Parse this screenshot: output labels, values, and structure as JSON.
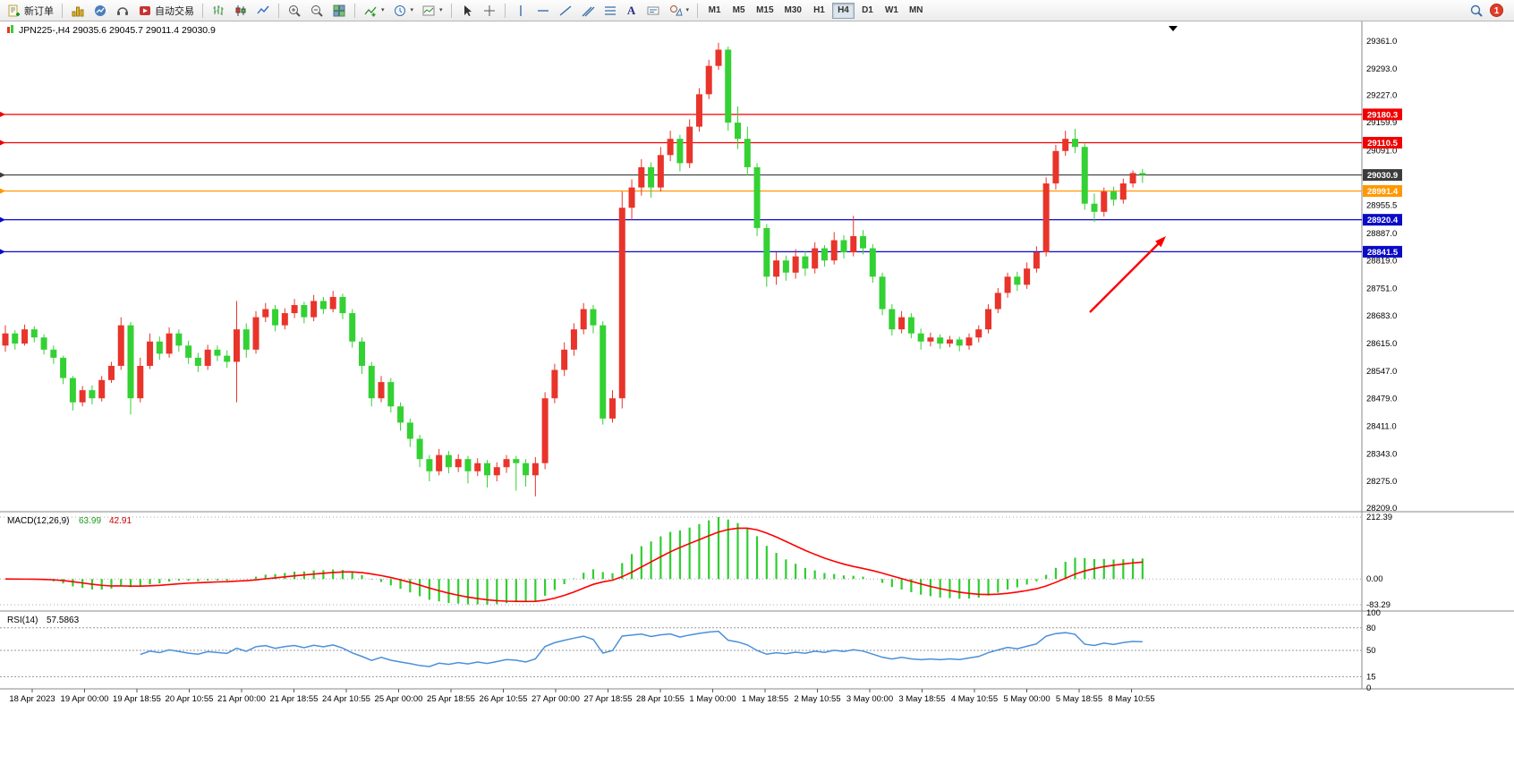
{
  "toolbar": {
    "new_order": "新订单",
    "autotrading": "自动交易",
    "timeframes": [
      "M1",
      "M5",
      "M15",
      "M30",
      "H1",
      "H4",
      "D1",
      "W1",
      "MN"
    ],
    "active_timeframe": "H4",
    "badge_count": "1"
  },
  "chart": {
    "title": "JPN225-,H4 29035.6 29045.7 29011.4 29030.9",
    "symbol": "JPN225-",
    "period": "H4",
    "open": "29035.6",
    "high": "29045.7",
    "low": "29011.4",
    "close": "29030.9"
  },
  "chart_data": {
    "type": "candlestick",
    "title": "JPN225-,H4",
    "y_range": [
      28209.0,
      29361.0
    ],
    "price_axis_labels": [
      "29361.0",
      "29293.0",
      "29227.0",
      "29159.9",
      "29091.0",
      "28955.5",
      "28887.0",
      "28819.0",
      "28751.0",
      "28683.0",
      "28615.0",
      "28547.0",
      "28479.0",
      "28411.0",
      "28343.0",
      "28275.0",
      "28209.0"
    ],
    "time_labels": [
      "18 Apr 2023",
      "19 Apr 00:00",
      "19 Apr 18:55",
      "20 Apr 10:55",
      "21 Apr 00:00",
      "21 Apr 18:55",
      "24 Apr 10:55",
      "25 Apr 00:00",
      "25 Apr 18:55",
      "26 Apr 10:55",
      "27 Apr 00:00",
      "27 Apr 18:55",
      "28 Apr 10:55",
      "1 May 00:00",
      "1 May 18:55",
      "2 May 10:55",
      "3 May 00:00",
      "3 May 18:55",
      "4 May 10:55",
      "5 May 00:00",
      "5 May 18:55",
      "8 May 10:55"
    ],
    "candles_ohlc": [
      [
        28610,
        28660,
        28595,
        28640
      ],
      [
        28640,
        28648,
        28600,
        28615
      ],
      [
        28615,
        28662,
        28610,
        28650
      ],
      [
        28650,
        28658,
        28618,
        28630
      ],
      [
        28630,
        28638,
        28588,
        28600
      ],
      [
        28600,
        28610,
        28565,
        28580
      ],
      [
        28580,
        28585,
        28515,
        28530
      ],
      [
        28530,
        28535,
        28450,
        28470
      ],
      [
        28470,
        28510,
        28460,
        28500
      ],
      [
        28500,
        28512,
        28465,
        28480
      ],
      [
        28480,
        28535,
        28472,
        28525
      ],
      [
        28525,
        28570,
        28518,
        28560
      ],
      [
        28560,
        28680,
        28550,
        28660
      ],
      [
        28660,
        28668,
        28440,
        28480
      ],
      [
        28480,
        28580,
        28470,
        28560
      ],
      [
        28560,
        28640,
        28552,
        28620
      ],
      [
        28620,
        28632,
        28575,
        28590
      ],
      [
        28590,
        28655,
        28580,
        28640
      ],
      [
        28640,
        28650,
        28595,
        28610
      ],
      [
        28610,
        28622,
        28565,
        28580
      ],
      [
        28580,
        28592,
        28545,
        28560
      ],
      [
        28560,
        28612,
        28550,
        28600
      ],
      [
        28600,
        28610,
        28572,
        28585
      ],
      [
        28585,
        28598,
        28555,
        28570
      ],
      [
        28570,
        28720,
        28470,
        28650
      ],
      [
        28650,
        28665,
        28580,
        28600
      ],
      [
        28600,
        28695,
        28590,
        28680
      ],
      [
        28680,
        28715,
        28668,
        28700
      ],
      [
        28700,
        28710,
        28645,
        28660
      ],
      [
        28660,
        28702,
        28650,
        28690
      ],
      [
        28690,
        28725,
        28678,
        28710
      ],
      [
        28710,
        28718,
        28665,
        28680
      ],
      [
        28680,
        28735,
        28670,
        28720
      ],
      [
        28720,
        28730,
        28688,
        28700
      ],
      [
        28700,
        28745,
        28692,
        28730
      ],
      [
        28730,
        28738,
        28675,
        28690
      ],
      [
        28690,
        28700,
        28605,
        28620
      ],
      [
        28620,
        28630,
        28540,
        28560
      ],
      [
        28560,
        28570,
        28460,
        28480
      ],
      [
        28480,
        28535,
        28470,
        28520
      ],
      [
        28520,
        28530,
        28445,
        28460
      ],
      [
        28460,
        28470,
        28400,
        28420
      ],
      [
        28420,
        28430,
        28360,
        28380
      ],
      [
        28380,
        28390,
        28310,
        28330
      ],
      [
        28330,
        28340,
        28275,
        28300
      ],
      [
        28300,
        28355,
        28290,
        28340
      ],
      [
        28340,
        28350,
        28295,
        28310
      ],
      [
        28310,
        28342,
        28298,
        28330
      ],
      [
        28330,
        28338,
        28270,
        28300
      ],
      [
        28300,
        28332,
        28288,
        28320
      ],
      [
        28320,
        28328,
        28260,
        28290
      ],
      [
        28290,
        28322,
        28275,
        28310
      ],
      [
        28310,
        28340,
        28296,
        28330
      ],
      [
        28330,
        28338,
        28252,
        28320
      ],
      [
        28320,
        28330,
        28262,
        28290
      ],
      [
        28290,
        28335,
        28238,
        28320
      ],
      [
        28320,
        28495,
        28305,
        28480
      ],
      [
        28480,
        28565,
        28468,
        28550
      ],
      [
        28550,
        28618,
        28535,
        28600
      ],
      [
        28600,
        28665,
        28585,
        28650
      ],
      [
        28650,
        28715,
        28638,
        28700
      ],
      [
        28700,
        28710,
        28640,
        28660
      ],
      [
        28660,
        28670,
        28415,
        28430
      ],
      [
        28430,
        28500,
        28420,
        28480
      ],
      [
        28480,
        28990,
        28455,
        28950
      ],
      [
        28950,
        29020,
        28920,
        29000
      ],
      [
        29000,
        29070,
        28980,
        29050
      ],
      [
        29050,
        29062,
        28975,
        29000
      ],
      [
        29000,
        29100,
        28990,
        29080
      ],
      [
        29080,
        29140,
        29065,
        29120
      ],
      [
        29120,
        29130,
        29040,
        29060
      ],
      [
        29060,
        29168,
        29048,
        29150
      ],
      [
        29150,
        29245,
        29138,
        29230
      ],
      [
        29230,
        29315,
        29218,
        29300
      ],
      [
        29300,
        29357,
        29290,
        29340
      ],
      [
        29340,
        29348,
        29140,
        29160
      ],
      [
        29160,
        29200,
        29095,
        29120
      ],
      [
        29120,
        29150,
        29030,
        29050
      ],
      [
        29050,
        29060,
        28880,
        28900
      ],
      [
        28900,
        28910,
        28755,
        28780
      ],
      [
        28780,
        28840,
        28760,
        28820
      ],
      [
        28820,
        28832,
        28770,
        28790
      ],
      [
        28790,
        28848,
        28775,
        28830
      ],
      [
        28830,
        28842,
        28782,
        28800
      ],
      [
        28800,
        28865,
        28788,
        28850
      ],
      [
        28850,
        28858,
        28805,
        28820
      ],
      [
        28820,
        28890,
        28810,
        28870
      ],
      [
        28870,
        28882,
        28825,
        28840
      ],
      [
        28840,
        28930,
        28830,
        28880
      ],
      [
        28880,
        28895,
        28835,
        28850
      ],
      [
        28850,
        28860,
        28765,
        28780
      ],
      [
        28780,
        28790,
        28685,
        28700
      ],
      [
        28700,
        28712,
        28635,
        28650
      ],
      [
        28650,
        28695,
        28640,
        28680
      ],
      [
        28680,
        28690,
        28628,
        28640
      ],
      [
        28640,
        28652,
        28600,
        28620
      ],
      [
        28620,
        28642,
        28608,
        28630
      ],
      [
        28630,
        28638,
        28602,
        28615
      ],
      [
        28615,
        28634,
        28606,
        28625
      ],
      [
        28625,
        28632,
        28596,
        28610
      ],
      [
        28610,
        28640,
        28600,
        28630
      ],
      [
        28630,
        28660,
        28618,
        28650
      ],
      [
        28650,
        28712,
        28640,
        28700
      ],
      [
        28700,
        28752,
        28690,
        28740
      ],
      [
        28740,
        28790,
        28728,
        28780
      ],
      [
        28780,
        28792,
        28745,
        28760
      ],
      [
        28760,
        28815,
        28750,
        28800
      ],
      [
        28800,
        28855,
        28790,
        28840
      ],
      [
        28840,
        29025,
        28830,
        29010
      ],
      [
        29010,
        29105,
        28995,
        29090
      ],
      [
        29090,
        29140,
        29078,
        29120
      ],
      [
        29120,
        29145,
        29085,
        29100
      ],
      [
        29100,
        29110,
        28945,
        28960
      ],
      [
        28960,
        28985,
        28915,
        28940
      ],
      [
        28940,
        29000,
        28928,
        28990
      ],
      [
        28990,
        29002,
        28955,
        28970
      ],
      [
        28970,
        29022,
        28960,
        29010
      ],
      [
        29010,
        29042,
        29000,
        29035.6
      ],
      [
        29035.6,
        29045.7,
        29011.4,
        29030.9
      ]
    ],
    "levels": [
      {
        "price": 29180.3,
        "label": "29180.3",
        "color": "#f00000",
        "kind": "resistance-line"
      },
      {
        "price": 29110.5,
        "label": "29110.5",
        "color": "#f00000",
        "kind": "resistance-line"
      },
      {
        "price": 29030.9,
        "label": "29030.9",
        "color": "#3c3c3c",
        "kind": "current-price"
      },
      {
        "price": 28991.4,
        "label": "28991.4",
        "color": "#ff9800",
        "kind": "level-line"
      },
      {
        "price": 28920.4,
        "label": "28920.4",
        "color": "#0a0ac8",
        "kind": "support-line"
      },
      {
        "price": 28841.5,
        "label": "28841.5",
        "color": "#0a0ac8",
        "kind": "support-line"
      }
    ],
    "colors": {
      "bull": "#e8342a",
      "bear": "#33d133",
      "macd_histogram": "#2fce2f",
      "macd_signal": "#ff0000",
      "rsi_line": "#4a90d9",
      "arrow": "#ff0000"
    },
    "indicators": {
      "macd": {
        "name": "MACD(12,26,9)",
        "main_value": "63.99",
        "signal_value": "42.91",
        "fast": 12,
        "slow": 26,
        "signal": 9,
        "axis_labels": [
          "212.39",
          "0.00",
          "-83.29"
        ]
      },
      "rsi": {
        "name": "RSI(14)",
        "value": "57.5863",
        "period": 14,
        "axis_labels": [
          "100",
          "80",
          "50",
          "15",
          "0"
        ],
        "level_lines": [
          80,
          50,
          15
        ]
      }
    },
    "annotations": [
      {
        "type": "arrow",
        "color": "#ff0000",
        "direction": "up-right"
      }
    ]
  }
}
